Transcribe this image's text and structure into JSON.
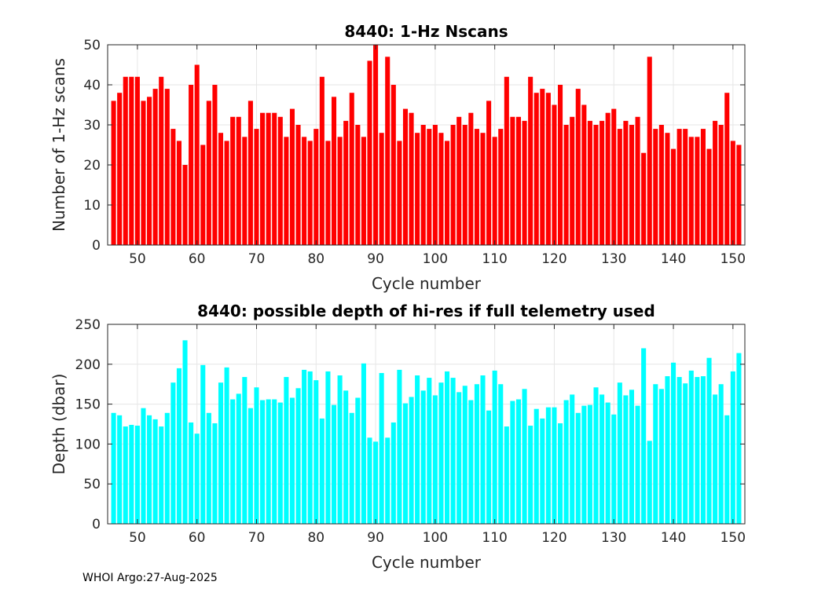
{
  "footer": "WHOI Argo:27-Aug-2025",
  "chart_data": [
    {
      "type": "bar",
      "title": "8440: 1-Hz Nscans",
      "xlabel": "Cycle number",
      "ylabel": "Number of 1-Hz scans",
      "xlim": [
        45,
        152
      ],
      "ylim": [
        0,
        50
      ],
      "xticks": [
        50,
        60,
        70,
        80,
        90,
        100,
        110,
        120,
        130,
        140,
        150
      ],
      "yticks": [
        0,
        10,
        20,
        30,
        40,
        50
      ],
      "grid": true,
      "color": "#ff0000",
      "x_start": 46,
      "values": [
        36,
        38,
        42,
        42,
        42,
        36,
        37,
        39,
        42,
        39,
        29,
        26,
        20,
        40,
        45,
        25,
        36,
        40,
        28,
        26,
        32,
        32,
        27,
        36,
        29,
        33,
        33,
        33,
        32,
        27,
        34,
        30,
        27,
        26,
        29,
        42,
        26,
        37,
        27,
        31,
        38,
        30,
        27,
        46,
        50,
        28,
        47,
        40,
        26,
        34,
        33,
        28,
        30,
        29,
        30,
        28,
        26,
        30,
        32,
        30,
        33,
        29,
        28,
        36,
        27,
        29,
        42,
        32,
        32,
        31,
        42,
        38,
        39,
        38,
        35,
        40,
        30,
        32,
        39,
        35,
        31,
        30,
        31,
        33,
        34,
        29,
        31,
        30,
        32,
        23,
        47,
        29,
        30,
        28,
        24,
        29,
        29,
        27,
        27,
        29,
        24,
        31,
        30,
        38,
        26,
        25
      ]
    },
    {
      "type": "bar",
      "title": "8440: possible depth of hi-res if full telemetry used",
      "xlabel": "Cycle number",
      "ylabel": "Depth (dbar)",
      "xlim": [
        45,
        152
      ],
      "ylim": [
        0,
        250
      ],
      "xticks": [
        50,
        60,
        70,
        80,
        90,
        100,
        110,
        120,
        130,
        140,
        150
      ],
      "yticks": [
        0,
        50,
        100,
        150,
        200,
        250
      ],
      "grid": true,
      "color": "#00ffff",
      "x_start": 46,
      "values": [
        139,
        136,
        122,
        124,
        123,
        145,
        136,
        131,
        122,
        139,
        177,
        195,
        230,
        127,
        113,
        199,
        139,
        126,
        177,
        196,
        156,
        163,
        184,
        145,
        171,
        155,
        156,
        156,
        152,
        184,
        158,
        170,
        193,
        191,
        180,
        132,
        191,
        149,
        186,
        167,
        139,
        158,
        201,
        108,
        103,
        189,
        108,
        127,
        193,
        151,
        159,
        186,
        167,
        183,
        161,
        177,
        191,
        183,
        165,
        173,
        155,
        175,
        186,
        142,
        192,
        175,
        122,
        154,
        156,
        169,
        123,
        144,
        132,
        146,
        146,
        126,
        155,
        162,
        139,
        148,
        149,
        171,
        162,
        152,
        137,
        177,
        161,
        168,
        148,
        220,
        104,
        175,
        169,
        185,
        202,
        184,
        176,
        192,
        184,
        185,
        208,
        162,
        175,
        136,
        191,
        214
      ]
    }
  ]
}
